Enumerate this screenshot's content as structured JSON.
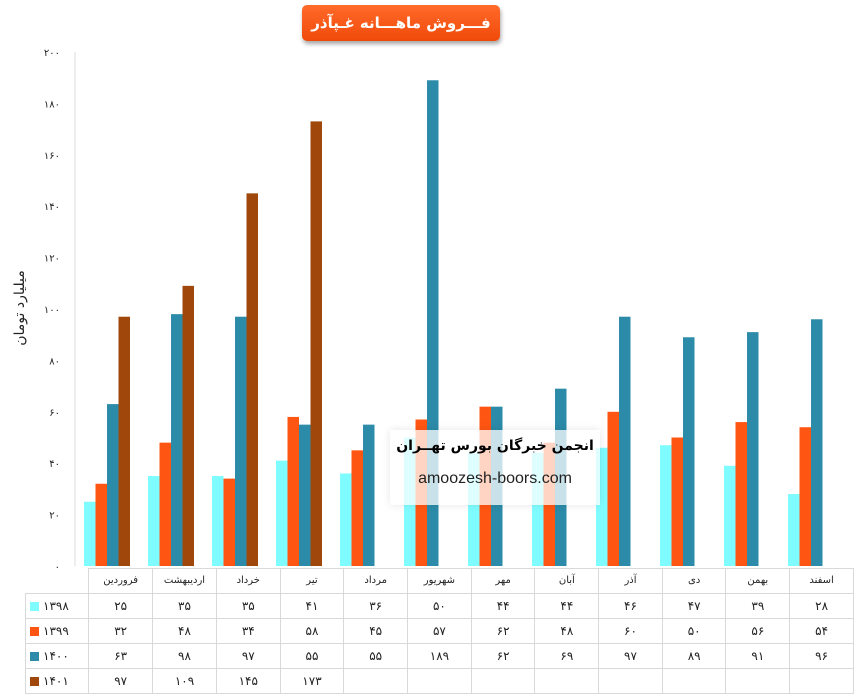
{
  "chart_data": {
    "type": "bar",
    "title": "فـــروش ماهـــانه غـپآذر",
    "ylabel": "میلیارد تومان",
    "ylim": [
      0,
      200
    ],
    "yticks": [
      "۰",
      "۲۰",
      "۴۰",
      "۶۰",
      "۸۰",
      "۱۰۰",
      "۱۲۰",
      "۱۴۰",
      "۱۶۰",
      "۱۸۰",
      "۲۰۰"
    ],
    "grid": false,
    "legend": "left-in-table",
    "categories": [
      "فروردین",
      "اردیبهشت",
      "خرداد",
      "تیر",
      "مرداد",
      "شهریور",
      "مهر",
      "آبان",
      "آذر",
      "دی",
      "بهمن",
      "اسفند"
    ],
    "series": [
      {
        "name": "۱۳۹۸",
        "color": "#7ffcff",
        "values": [
          25,
          35,
          35,
          41,
          36,
          50,
          44,
          44,
          46,
          47,
          39,
          28
        ]
      },
      {
        "name": "۱۳۹۹",
        "color": "#ff5513",
        "values": [
          32,
          48,
          34,
          58,
          45,
          57,
          62,
          48,
          60,
          50,
          56,
          54
        ]
      },
      {
        "name": "۱۴۰۰",
        "color": "#2b8ba8",
        "values": [
          63,
          98,
          97,
          55,
          55,
          189,
          62,
          69,
          97,
          89,
          91,
          96
        ]
      },
      {
        "name": "۱۴۰۱",
        "color": "#a0480c",
        "values": [
          97,
          109,
          145,
          173,
          null,
          null,
          null,
          null,
          null,
          null,
          null,
          null
        ]
      }
    ]
  },
  "watermark": {
    "org": "انجمن خبرگان بورس تهــران",
    "site": "amoozesh-boors.com"
  }
}
